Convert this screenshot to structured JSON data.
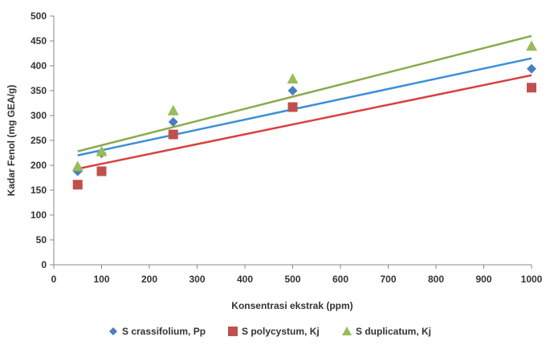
{
  "chart_data": {
    "type": "scatter",
    "xlabel": "Konsentrasi ekstrak (ppm)",
    "ylabel": "Kadar Fenol (mg GEA/g)",
    "xlim": [
      0,
      1000
    ],
    "ylim": [
      0,
      500
    ],
    "xticks": [
      0,
      100,
      200,
      300,
      400,
      500,
      600,
      700,
      800,
      900,
      1000
    ],
    "yticks": [
      0,
      50,
      100,
      150,
      200,
      250,
      300,
      350,
      400,
      450,
      500
    ],
    "grid": false,
    "legend_position": "bottom",
    "series": [
      {
        "name": "S crassifolium, Pp",
        "marker": "diamond",
        "color": "#4a7ebb",
        "trend_color": "#3a8fd8",
        "x": [
          50,
          100,
          250,
          500,
          1000
        ],
        "y": [
          188,
          224,
          287,
          350,
          394
        ],
        "trendline": [
          [
            50,
            220
          ],
          [
            1000,
            415
          ]
        ]
      },
      {
        "name": "S polycystum, Kj",
        "marker": "square",
        "color": "#c0504d",
        "trend_color": "#d94040",
        "x": [
          50,
          100,
          250,
          500,
          1000
        ],
        "y": [
          161,
          188,
          262,
          317,
          356
        ],
        "trendline": [
          [
            50,
            193
          ],
          [
            1000,
            381
          ]
        ]
      },
      {
        "name": "S duplicatum, Kj",
        "marker": "triangle",
        "color": "#9bbb59",
        "trend_color": "#8aaa4e",
        "x": [
          50,
          100,
          250,
          500,
          1000
        ],
        "y": [
          198,
          228,
          310,
          374,
          440
        ],
        "trendline": [
          [
            50,
            228
          ],
          [
            1000,
            460
          ]
        ]
      }
    ]
  }
}
